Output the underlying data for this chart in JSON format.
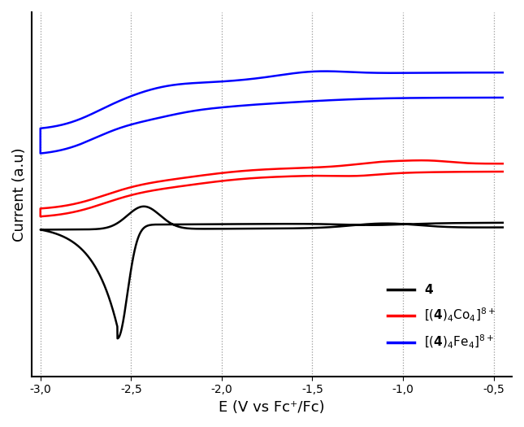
{
  "title": "",
  "xlabel": "E (V vs Fc⁺/Fc)",
  "ylabel": "Current (a.u)",
  "xlim": [
    -3.05,
    -0.4
  ],
  "x_ticks": [
    -3.0,
    -2.5,
    -2.0,
    -1.5,
    -1.0,
    -0.5
  ],
  "grid_color": "#999999",
  "background_color": "#ffffff",
  "line_width": 1.8,
  "colors": {
    "black": "#000000",
    "red": "#ff0000",
    "blue": "#0000ff"
  }
}
